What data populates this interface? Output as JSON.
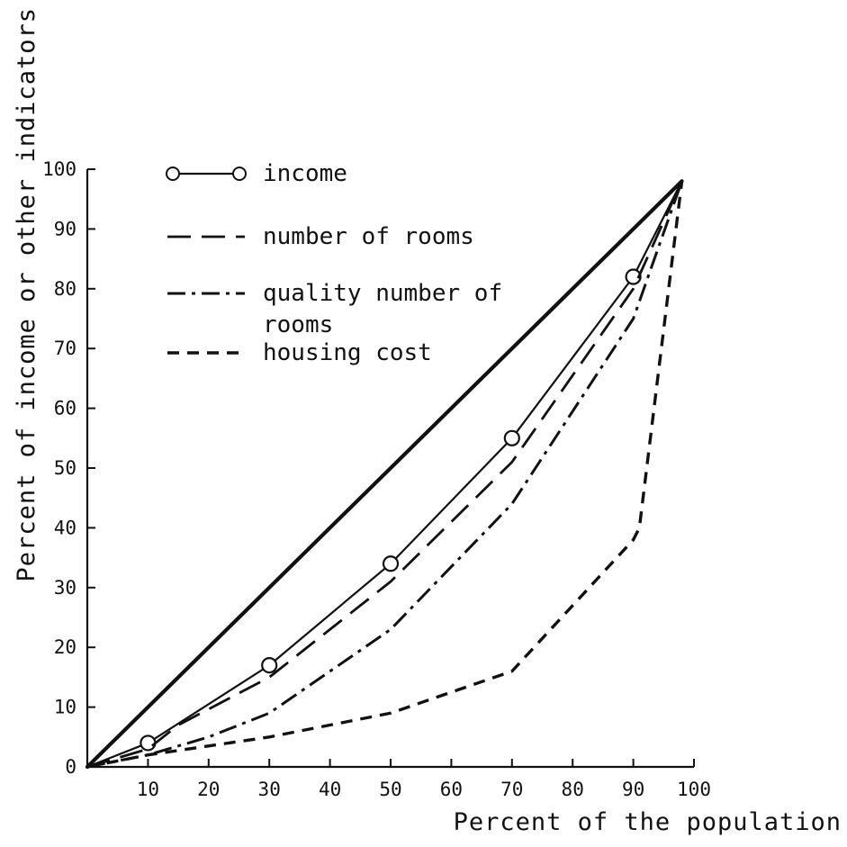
{
  "chart_data": {
    "type": "line",
    "title": "",
    "xlabel": "Percent of the population",
    "ylabel": "Percent of income or other indicators",
    "xlim": [
      0,
      100
    ],
    "ylim": [
      0,
      100
    ],
    "x_ticks": [
      10,
      20,
      30,
      40,
      50,
      60,
      70,
      80,
      90,
      100
    ],
    "y_ticks": [
      0,
      10,
      20,
      30,
      40,
      50,
      60,
      70,
      80,
      90,
      100
    ],
    "grid": false,
    "legend_position": "top-left",
    "equality_line": {
      "x": [
        0,
        98
      ],
      "y": [
        0,
        98
      ]
    },
    "series": [
      {
        "name": "income",
        "style": "solid-with-circles",
        "color": "#111111",
        "x": [
          0,
          10,
          30,
          50,
          70,
          90,
          98
        ],
        "y": [
          0,
          4,
          17,
          34,
          55,
          82,
          98
        ]
      },
      {
        "name": "number of rooms",
        "style": "long-dash",
        "color": "#111111",
        "x": [
          0,
          10,
          15,
          30,
          50,
          70,
          90,
          98
        ],
        "y": [
          0,
          3,
          7,
          15,
          31,
          51,
          80,
          98
        ]
      },
      {
        "name": "quality number of rooms",
        "style": "dash-dot",
        "color": "#111111",
        "x": [
          0,
          10,
          20,
          30,
          50,
          70,
          90,
          98
        ],
        "y": [
          0,
          2,
          5,
          9,
          23,
          44,
          75,
          98
        ]
      },
      {
        "name": "housing cost",
        "style": "short-dash",
        "color": "#111111",
        "x": [
          0,
          10,
          30,
          50,
          70,
          90,
          91,
          98
        ],
        "y": [
          0,
          2,
          5,
          9,
          16,
          38,
          40,
          98
        ]
      }
    ],
    "legend": [
      {
        "label_lines": [
          "income"
        ],
        "style": "solid-with-circles"
      },
      {
        "label_lines": [
          "number of rooms"
        ],
        "style": "long-dash"
      },
      {
        "label_lines": [
          "quality number of",
          "rooms"
        ],
        "style": "dash-dot"
      },
      {
        "label_lines": [
          "housing cost"
        ],
        "style": "short-dash"
      }
    ]
  }
}
